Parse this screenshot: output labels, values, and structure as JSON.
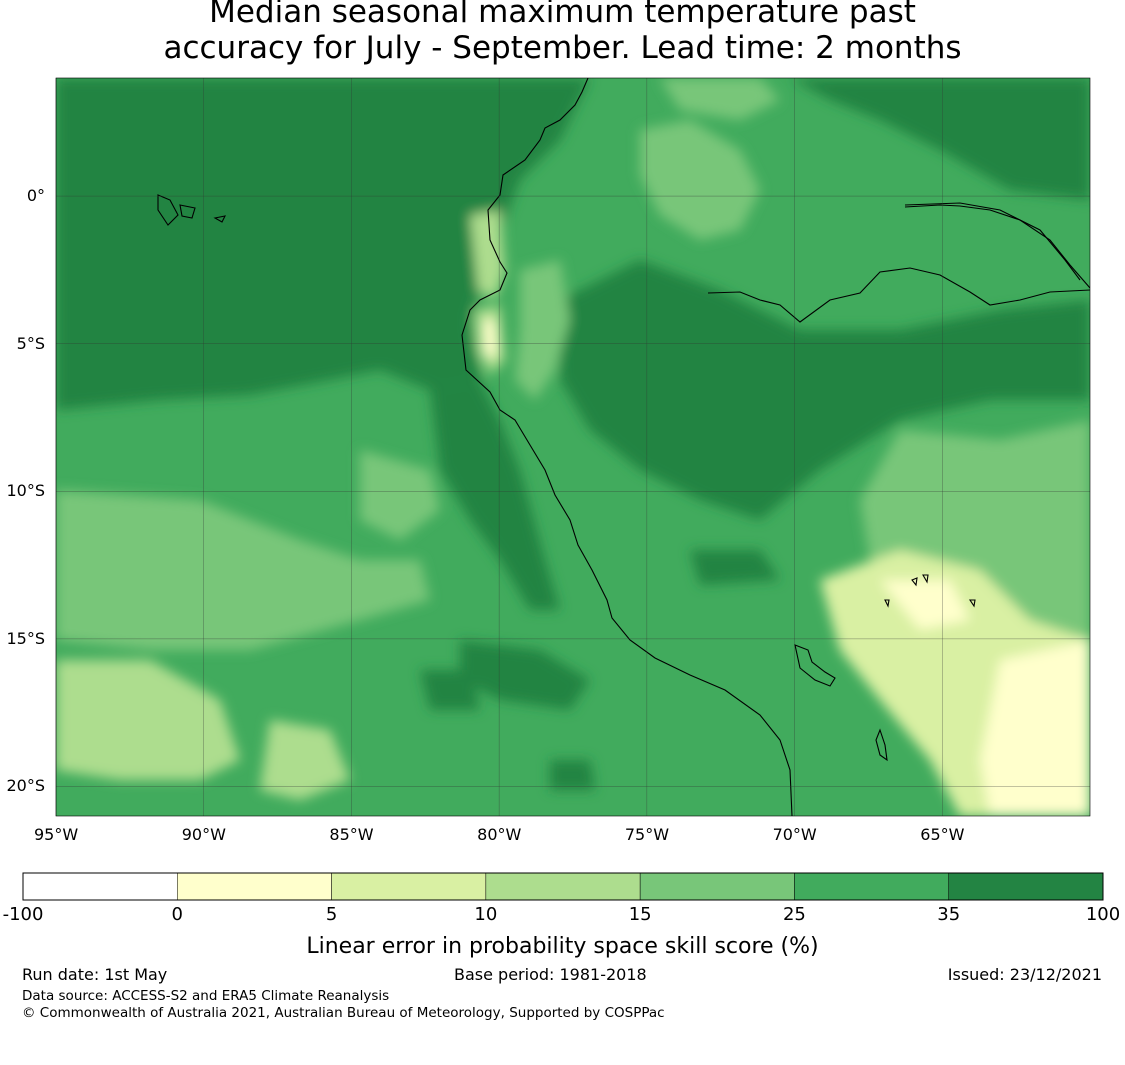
{
  "title": {
    "line1": "Median seasonal maximum temperature past",
    "line2": "accuracy for July - September. Lead time: 2 months"
  },
  "map": {
    "lon_range": [
      -95,
      -60
    ],
    "lat_range": [
      -21,
      4
    ],
    "lon_ticks": [
      {
        "value": -95,
        "label": "95°W"
      },
      {
        "value": -90,
        "label": "90°W"
      },
      {
        "value": -85,
        "label": "85°W"
      },
      {
        "value": -80,
        "label": "80°W"
      },
      {
        "value": -75,
        "label": "75°W"
      },
      {
        "value": -70,
        "label": "70°W"
      },
      {
        "value": -65,
        "label": "65°W"
      }
    ],
    "lat_ticks": [
      {
        "value": 0,
        "label": "0°"
      },
      {
        "value": -5,
        "label": "5°S"
      },
      {
        "value": -10,
        "label": "10°S"
      },
      {
        "value": -15,
        "label": "15°S"
      },
      {
        "value": -20,
        "label": "20°S"
      }
    ],
    "gridlines": true
  },
  "colorbar": {
    "title": "Linear error in probability space skill score (%)",
    "labels": [
      "-100",
      "0",
      "5",
      "10",
      "15",
      "25",
      "35",
      "100"
    ],
    "colors": [
      "#ffffff",
      "#ffffcc",
      "#d9f0a3",
      "#addd8e",
      "#78c679",
      "#41ab5d",
      "#238443"
    ]
  },
  "footer": {
    "run_date": "Run date: 1st May",
    "base_period": "Base period: 1981-2018",
    "issued": "Issued: 23/12/2021",
    "data_source": "Data source: ACCESS-S2 and ERA5 Climate Reanalysis",
    "copyright": "© Commonwealth of Australia 2021, Australian Bureau of Meteorology, Supported by COSPPac"
  }
}
